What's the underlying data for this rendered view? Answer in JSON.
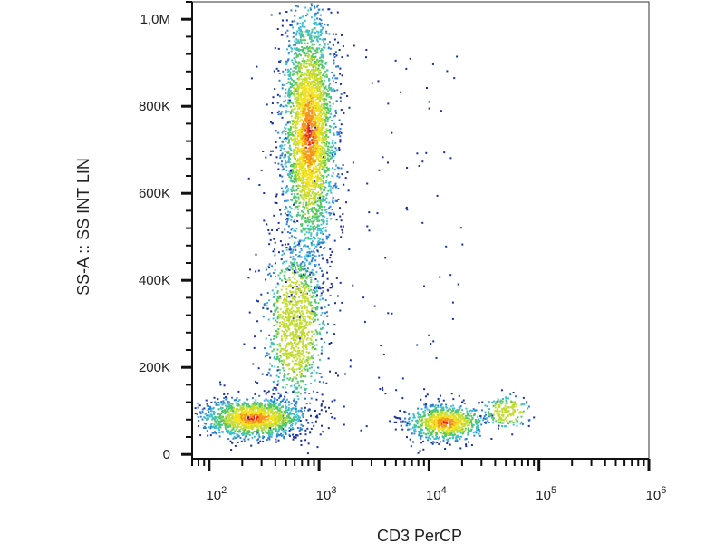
{
  "chart_data": {
    "type": "scatter",
    "subtype": "flow-cytometry-density-dot-plot",
    "title": "",
    "xlabel": "CD3 PerCP",
    "ylabel": "SS-A :: SS INT LIN",
    "x_scale": "log",
    "xlim": [
      70,
      1000000
    ],
    "ylim": [
      -10000,
      1040000
    ],
    "x_ticks": [
      {
        "value": 100,
        "base": "10",
        "exp": "2"
      },
      {
        "value": 1000,
        "base": "10",
        "exp": "3"
      },
      {
        "value": 10000,
        "base": "10",
        "exp": "4"
      },
      {
        "value": 100000,
        "base": "10",
        "exp": "5"
      },
      {
        "value": 1000000,
        "base": "10",
        "exp": "6"
      }
    ],
    "y_ticks": [
      {
        "value": 0,
        "label": "0"
      },
      {
        "value": 200000,
        "label": "200K"
      },
      {
        "value": 400000,
        "label": "400K"
      },
      {
        "value": 600000,
        "label": "600K"
      },
      {
        "value": 800000,
        "label": "800K"
      },
      {
        "value": 1000000,
        "label": "1,0M"
      }
    ],
    "density_colors": [
      "#1a2fa8",
      "#2f7fd6",
      "#3fbfcf",
      "#52c768",
      "#c2dc34",
      "#f3e21f",
      "#f6951e",
      "#e8261c"
    ],
    "grid": false,
    "legend": "none",
    "populations": [
      {
        "name": "",
        "x_center": 800,
        "x_spread_log10": 0.12,
        "y_center": 740000,
        "y_spread": 140000,
        "count": 3200,
        "peak": "red"
      },
      {
        "name": "",
        "x_center": 600,
        "x_spread_log10": 0.13,
        "y_center": 300000,
        "y_spread": 90000,
        "count": 1100,
        "peak": "green"
      },
      {
        "name": "",
        "x_center": 250,
        "x_spread_log10": 0.22,
        "y_center": 85000,
        "y_spread": 22000,
        "count": 1500,
        "peak": "red"
      },
      {
        "name": "",
        "x_center": 14000,
        "x_spread_log10": 0.17,
        "y_center": 75000,
        "y_spread": 20000,
        "count": 900,
        "peak": "red"
      },
      {
        "name": "",
        "x_center": 50000,
        "x_spread_log10": 0.1,
        "y_center": 100000,
        "y_spread": 18000,
        "count": 180,
        "peak": "green"
      }
    ]
  }
}
